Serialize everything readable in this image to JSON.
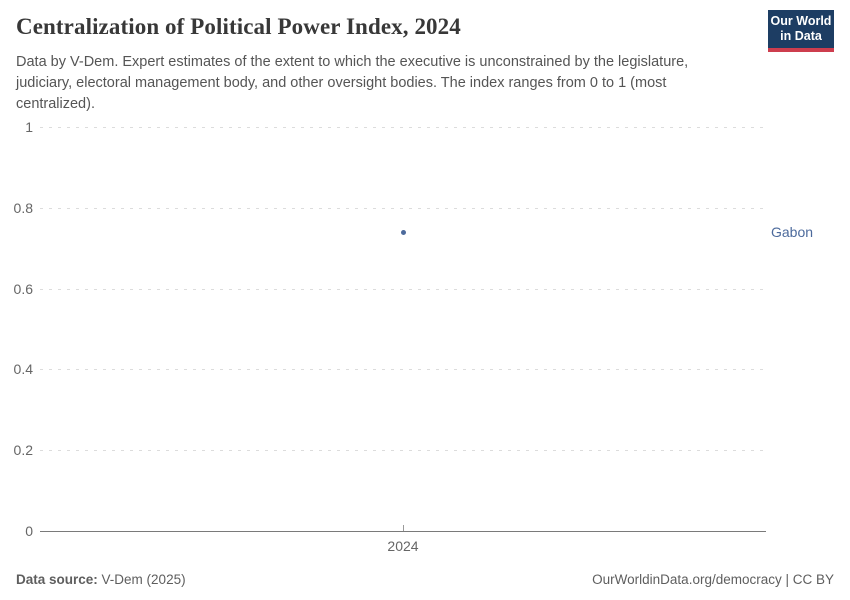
{
  "header": {
    "title": "Centralization of Political Power Index, 2024",
    "subtitle": "Data by V-Dem. Expert estimates of the extent to which the executive is unconstrained by the legislature, judiciary, electoral management body, and other oversight bodies. The index ranges from 0 to 1 (most centralized).",
    "logo": {
      "line1": "Our World",
      "line2": "in Data"
    }
  },
  "chart_data": {
    "type": "scatter",
    "title": "Centralization of Political Power Index, 2024",
    "x": [
      "2024"
    ],
    "series": [
      {
        "name": "Gabon",
        "values": [
          0.74
        ]
      }
    ],
    "ylim": [
      0,
      1
    ],
    "yticks": [
      0,
      0.2,
      0.4,
      0.6,
      0.8,
      1
    ],
    "xlabel": "",
    "ylabel": "",
    "grid": true,
    "legend_position": "right-entity-label",
    "point_color": "#4c6a9c"
  },
  "footer": {
    "source_label": "Data source:",
    "source_value": "V-Dem (2025)",
    "credit": "OurWorldinData.org/democracy | CC BY"
  },
  "colors": {
    "accent_blue": "#4c6a9c",
    "logo_navy": "#1d3d63",
    "logo_red": "#cd3d4e",
    "gridline": "#dcdcdc",
    "axis_line": "#7a7a7a",
    "tick_text": "#666666"
  }
}
